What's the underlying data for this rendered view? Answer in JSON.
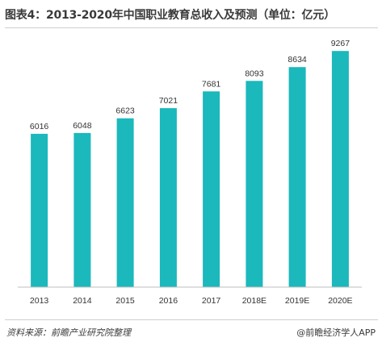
{
  "title": "图表4：2013-2020年中国职业教育总收入及预测（单位：亿元）",
  "source": "资料来源：前瞻产业研究院整理",
  "brand": "@前瞻经济学人APP",
  "colors": {
    "bar": "#1bb8bc",
    "axis": "#bfbfbf",
    "text": "#333333"
  },
  "chart_data": {
    "type": "bar",
    "title": "图表4：2013-2020年中国职业教育总收入及预测（单位：亿元）",
    "categories": [
      "2013",
      "2014",
      "2015",
      "2016",
      "2017",
      "2018E",
      "2019E",
      "2020E"
    ],
    "values": [
      6016,
      6048,
      6623,
      7021,
      7681,
      8093,
      8634,
      9267
    ],
    "data_labels": [
      "6016",
      "6048",
      "6623",
      "7021",
      "7681",
      "8093",
      "8634",
      "9267"
    ],
    "xlabel": "",
    "ylabel": "",
    "ylim": [
      0,
      10000
    ],
    "grid": false,
    "legend": "none"
  }
}
